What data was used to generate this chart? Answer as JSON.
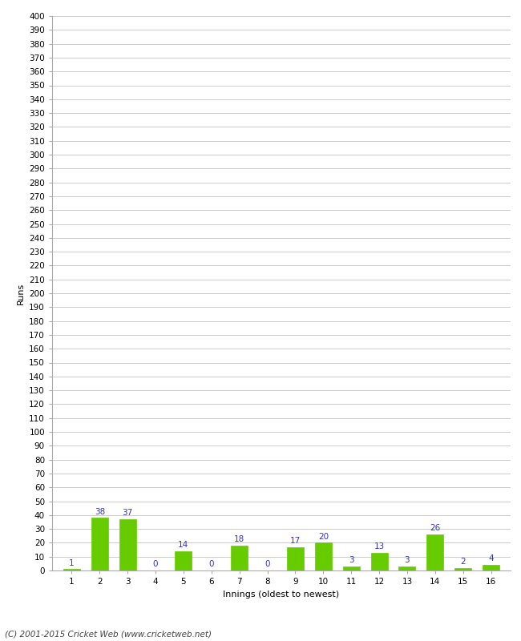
{
  "xlabel": "Innings (oldest to newest)",
  "ylabel": "Runs",
  "footer": "(C) 2001-2015 Cricket Web (www.cricketweb.net)",
  "categories": [
    1,
    2,
    3,
    4,
    5,
    6,
    7,
    8,
    9,
    10,
    11,
    12,
    13,
    14,
    15,
    16
  ],
  "values": [
    1,
    38,
    37,
    0,
    14,
    0,
    18,
    0,
    17,
    20,
    3,
    13,
    3,
    26,
    2,
    4
  ],
  "bar_color": "#66cc00",
  "bar_edge_color": "#66cc00",
  "label_color": "#3333cc",
  "ylim": [
    0,
    400
  ],
  "bg_color": "#ffffff",
  "grid_color": "#cccccc",
  "label_fontsize": 7.5,
  "axis_tick_fontsize": 7.5,
  "axis_label_fontsize": 8,
  "footer_fontsize": 7.5,
  "bar_width": 0.6
}
